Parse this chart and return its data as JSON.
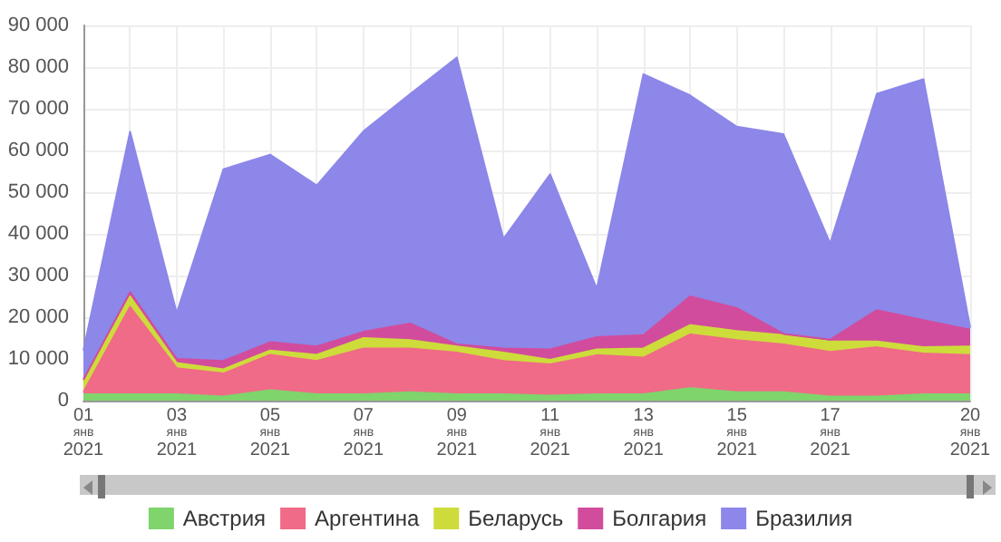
{
  "chart_data": {
    "type": "area",
    "stacked": true,
    "grid": true,
    "legend": "bottom",
    "marker": "none",
    "categories": [
      "01\nянв\n2021",
      null,
      "03\nянв\n2021",
      null,
      "05\nянв\n2021",
      null,
      "07\nянв\n2021",
      null,
      "09\nянв\n2021",
      null,
      "11\nянв\n2021",
      null,
      "13\nянв\n2021",
      null,
      "15\nянв\n2021",
      null,
      "17\nянв\n2021",
      null,
      null,
      "20\nянв\n2021"
    ],
    "ylim": [
      0,
      90000
    ],
    "yticks": [
      {
        "value": 0,
        "label": "0"
      },
      {
        "value": 10000,
        "label": "10 000"
      },
      {
        "value": 20000,
        "label": "20 000"
      },
      {
        "value": 30000,
        "label": "30 000"
      },
      {
        "value": 40000,
        "label": "40 000"
      },
      {
        "value": 50000,
        "label": "50 000"
      },
      {
        "value": 60000,
        "label": "60 000"
      },
      {
        "value": 70000,
        "label": "70 000"
      },
      {
        "value": 80000,
        "label": "80 000"
      },
      {
        "value": 90000,
        "label": "90 000"
      }
    ],
    "series": [
      {
        "name": "Австрия",
        "color": "#7fd46c",
        "values": [
          1500,
          1500,
          1500,
          1000,
          2500,
          1500,
          1500,
          2000,
          1500,
          1500,
          1200,
          1500,
          1500,
          3000,
          2000,
          2000,
          1000,
          1000,
          1500,
          1500
        ]
      },
      {
        "name": "Аргентина",
        "color": "#f06b87",
        "values": [
          500,
          21000,
          6300,
          5500,
          8500,
          8000,
          11000,
          10500,
          10000,
          8000,
          7500,
          9400,
          8800,
          12900,
          12500,
          11500,
          10700,
          11800,
          9800,
          9400
        ]
      },
      {
        "name": "Беларусь",
        "color": "#cddc3b",
        "values": [
          2500,
          2500,
          1200,
          1000,
          1000,
          1500,
          2500,
          2000,
          1500,
          2000,
          1100,
          1400,
          2200,
          2200,
          2200,
          2200,
          2500,
          1400,
          1500,
          2100
        ]
      },
      {
        "name": "Болгария",
        "color": "#d24c9d",
        "values": [
          500,
          1000,
          1000,
          2000,
          2000,
          2000,
          1500,
          4000,
          500,
          1000,
          2500,
          2900,
          3200,
          6900,
          5500,
          300,
          400,
          7500,
          6500,
          4000
        ]
      },
      {
        "name": "Бразилия",
        "color": "#8c87e8",
        "values": [
          7000,
          38500,
          11000,
          46000,
          45000,
          38600,
          48100,
          55000,
          68800,
          26300,
          42000,
          11600,
          62600,
          48200,
          43500,
          47900,
          23100,
          51900,
          57800,
          500
        ]
      }
    ]
  }
}
